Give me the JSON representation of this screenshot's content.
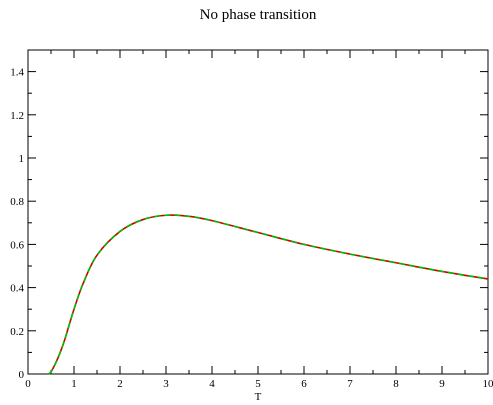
{
  "chart_data": {
    "type": "line",
    "title": "No phase transition",
    "xlabel": "T",
    "ylabel": "",
    "xlim": [
      0,
      10
    ],
    "ylim": [
      0,
      1.5
    ],
    "x_ticks": [
      0,
      1,
      2,
      3,
      4,
      5,
      6,
      7,
      8,
      9,
      10
    ],
    "y_ticks": [
      0,
      0.2,
      0.4,
      0.6,
      0.8,
      1,
      1.2,
      1.4
    ],
    "y_tick_labels": [
      "0",
      "0.2",
      "0.4",
      "0.6",
      "0.8",
      "1",
      "1.2",
      "1.4"
    ],
    "grid": false,
    "legend": "none",
    "series": [
      {
        "color": "#cc0000",
        "style": "solid",
        "x": [
          0.45,
          0.5,
          0.6,
          0.7,
          0.8,
          1.0,
          1.2,
          1.5,
          2.0,
          2.5,
          3.0,
          3.5,
          4.0,
          5.0,
          6.0,
          7.0,
          8.0,
          9.0,
          10.0
        ],
        "y": [
          0.0,
          0.01,
          0.05,
          0.1,
          0.16,
          0.3,
          0.42,
          0.55,
          0.66,
          0.715,
          0.735,
          0.73,
          0.71,
          0.655,
          0.6,
          0.555,
          0.515,
          0.475,
          0.44
        ]
      },
      {
        "color": "#00bb00",
        "style": "dashed",
        "x": [
          0.45,
          0.5,
          0.6,
          0.7,
          0.8,
          1.0,
          1.2,
          1.5,
          2.0,
          2.5,
          3.0,
          3.5,
          4.0,
          5.0,
          6.0,
          7.0,
          8.0,
          9.0,
          10.0
        ],
        "y": [
          0.0,
          0.01,
          0.05,
          0.1,
          0.16,
          0.3,
          0.42,
          0.55,
          0.66,
          0.715,
          0.735,
          0.73,
          0.71,
          0.655,
          0.6,
          0.555,
          0.515,
          0.475,
          0.44
        ]
      }
    ]
  }
}
